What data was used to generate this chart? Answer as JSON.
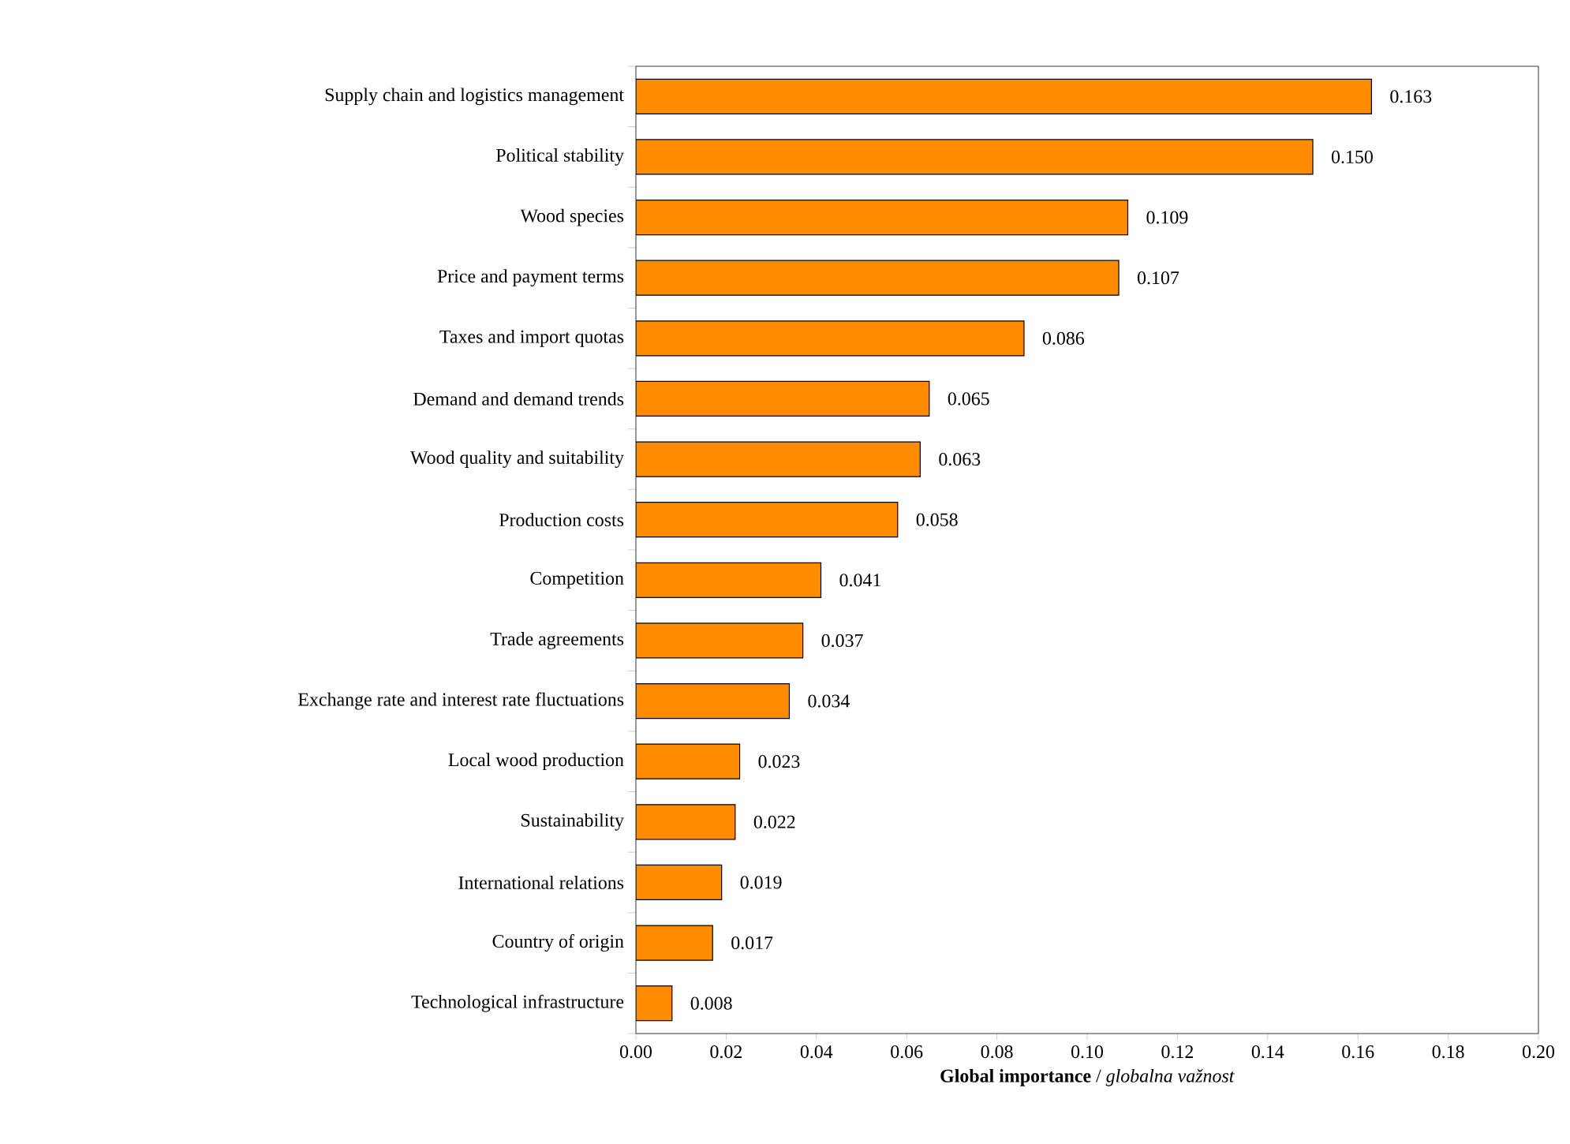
{
  "chart_data": {
    "type": "bar",
    "orientation": "horizontal",
    "categories": [
      "Supply chain and logistics management",
      "Political stability",
      "Wood species",
      "Price and payment terms",
      "Taxes and import quotas",
      "Demand and demand trends",
      "Wood quality and suitability",
      "Production costs",
      "Competition",
      "Trade agreements",
      "Exchange rate and interest rate fluctuations",
      "Local wood production",
      "Sustainability",
      "International relations",
      "Country of origin",
      "Technological infrastructure"
    ],
    "values": [
      0.163,
      0.15,
      0.109,
      0.107,
      0.086,
      0.065,
      0.063,
      0.058,
      0.041,
      0.037,
      0.034,
      0.023,
      0.022,
      0.019,
      0.017,
      0.008
    ],
    "value_labels": [
      "0.163",
      "0.150",
      "0.109",
      "0.107",
      "0.086",
      "0.065",
      "0.063",
      "0.058",
      "0.041",
      "0.037",
      "0.034",
      "0.023",
      "0.022",
      "0.019",
      "0.017",
      "0.008"
    ],
    "color": "#ff8c00",
    "xlabel": "**Global importance** / *globalna važnost*",
    "xlim": [
      0,
      0.2
    ],
    "xticks": [
      {
        "value": 0,
        "label": "0.00"
      },
      {
        "value": 0.02,
        "label": "0.02"
      },
      {
        "value": 0.04,
        "label": "0.04"
      },
      {
        "value": 0.06,
        "label": "0.06"
      },
      {
        "value": 0.08,
        "label": "0.08"
      },
      {
        "value": 0.1,
        "label": "0.10"
      },
      {
        "value": 0.12,
        "label": "0.12"
      },
      {
        "value": 0.14,
        "label": "0.14"
      },
      {
        "value": 0.16,
        "label": "0.16"
      },
      {
        "value": 0.18,
        "label": "0.18"
      },
      {
        "value": 0.2,
        "label": "0.20"
      }
    ],
    "line_style": "solid"
  }
}
